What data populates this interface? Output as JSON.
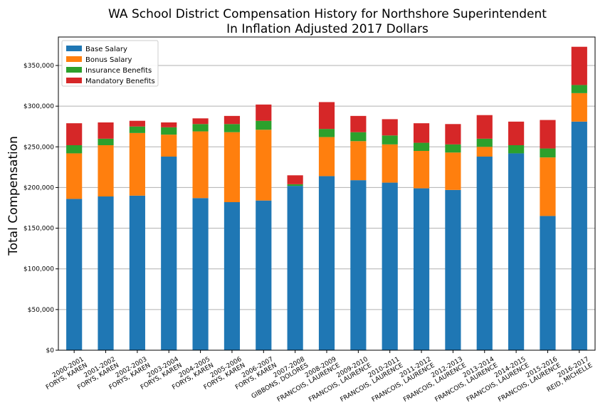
{
  "chart_data": {
    "type": "bar",
    "stacked": true,
    "title": "WA School District Compensation History for Northshore Superintendent",
    "subtitle": "In Inflation Adjusted 2017 Dollars",
    "xlabel": "",
    "ylabel": "Total Compensation",
    "ylim": [
      0,
      385000
    ],
    "yticks": [
      0,
      50000,
      100000,
      150000,
      200000,
      250000,
      300000,
      350000
    ],
    "ytick_labels": [
      "$0",
      "$50,000",
      "$100,000",
      "$150,000",
      "$200,000",
      "$250,000",
      "$300,000",
      "$350,000"
    ],
    "grid": "y",
    "legend_position": "top-left",
    "categories": [
      {
        "year": "2000-2001",
        "name": "FORYS, KAREN"
      },
      {
        "year": "2001-2002",
        "name": "FORYS, KAREN"
      },
      {
        "year": "2002-2003",
        "name": "FORYS, KAREN"
      },
      {
        "year": "2003-2004",
        "name": "FORYS, KAREN"
      },
      {
        "year": "2004-2005",
        "name": "FORYS, KAREN"
      },
      {
        "year": "2005-2006",
        "name": "FORYS, KAREN"
      },
      {
        "year": "2006-2007",
        "name": "FORYS, KAREN"
      },
      {
        "year": "2007-2008",
        "name": "GIBBONS, DOLORES"
      },
      {
        "year": "2008-2009",
        "name": "FRANCOIS, LAURENCE"
      },
      {
        "year": "2009-2010",
        "name": "FRANCOIS, LAURENCE"
      },
      {
        "year": "2010-2011",
        "name": "FRANCOIS, LAURENCE"
      },
      {
        "year": "2011-2012",
        "name": "FRANCOIS, LAURENCE"
      },
      {
        "year": "2012-2013",
        "name": "FRANCOIS, LAURENCE"
      },
      {
        "year": "2013-2014",
        "name": "FRANCOIS, LAURENCE"
      },
      {
        "year": "2014-2015",
        "name": "FRANCOIS, LAURENCE"
      },
      {
        "year": "2015-2016",
        "name": "FRANCOIS, LAURENCE"
      },
      {
        "year": "2016-2017",
        "name": "REID, MICHELLE"
      }
    ],
    "series": [
      {
        "name": "Base Salary",
        "color": "#1f77b4",
        "values": [
          186000,
          189000,
          190000,
          238000,
          187000,
          182000,
          184000,
          202000,
          214000,
          209000,
          206000,
          199000,
          197000,
          238000,
          242000,
          165000,
          281000
        ]
      },
      {
        "name": "Bonus Salary",
        "color": "#ff7f0e",
        "values": [
          56000,
          63000,
          77000,
          27000,
          82000,
          86000,
          87000,
          0,
          48000,
          48000,
          47000,
          46000,
          46000,
          12000,
          0,
          72000,
          35000
        ]
      },
      {
        "name": "Insurance Benefits",
        "color": "#2ca02c",
        "values": [
          10000,
          8000,
          8000,
          9000,
          9000,
          10000,
          11000,
          2000,
          10000,
          11000,
          11000,
          10000,
          10000,
          10000,
          10000,
          11000,
          10000
        ]
      },
      {
        "name": "Mandatory Benefits",
        "color": "#d62728",
        "values": [
          27000,
          20000,
          7000,
          6000,
          7000,
          10000,
          20000,
          11000,
          33000,
          20000,
          20000,
          24000,
          25000,
          29000,
          29000,
          35000,
          47000
        ]
      }
    ]
  }
}
